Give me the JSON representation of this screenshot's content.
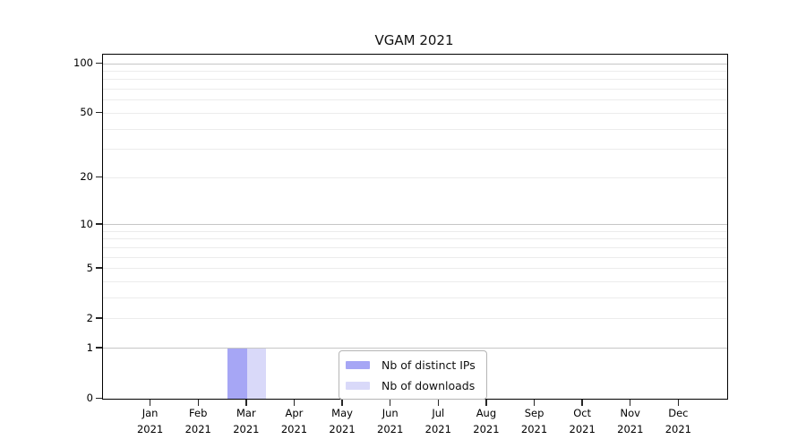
{
  "title": "VGAM 2021",
  "chart_data": {
    "type": "bar",
    "title": "VGAM 2021",
    "xlabel": "",
    "ylabel": "",
    "categories": [
      {
        "label": "Jan",
        "sublabel": "2021"
      },
      {
        "label": "Feb",
        "sublabel": "2021"
      },
      {
        "label": "Mar",
        "sublabel": "2021"
      },
      {
        "label": "Apr",
        "sublabel": "2021"
      },
      {
        "label": "May",
        "sublabel": "2021"
      },
      {
        "label": "Jun",
        "sublabel": "2021"
      },
      {
        "label": "Jul",
        "sublabel": "2021"
      },
      {
        "label": "Aug",
        "sublabel": "2021"
      },
      {
        "label": "Sep",
        "sublabel": "2021"
      },
      {
        "label": "Oct",
        "sublabel": "2021"
      },
      {
        "label": "Nov",
        "sublabel": "2021"
      },
      {
        "label": "Dec",
        "sublabel": "2021"
      }
    ],
    "series": [
      {
        "name": "Nb of distinct IPs",
        "color": "#a6a6f5",
        "values": [
          0,
          0,
          1,
          0,
          0,
          0,
          0,
          0,
          0,
          0,
          0,
          0
        ]
      },
      {
        "name": "Nb of downloads",
        "color": "#d9d9f9",
        "values": [
          0,
          0,
          1,
          0,
          0,
          0,
          0,
          0,
          0,
          0,
          0,
          0
        ]
      }
    ],
    "y_axis": {
      "scale": "log1p",
      "labeled_ticks": [
        0,
        1,
        2,
        5,
        10,
        20,
        50,
        100
      ],
      "major_grid_values": [
        1,
        10,
        100
      ],
      "minor_grid_values": [
        2,
        3,
        4,
        5,
        6,
        7,
        8,
        9,
        20,
        30,
        40,
        50,
        60,
        70,
        80,
        90
      ],
      "ylim": [
        0,
        113.3
      ],
      "grid": true
    },
    "legend": {
      "position": "lower-center",
      "entries": [
        "Nb of distinct IPs",
        "Nb of downloads"
      ]
    },
    "colors": {
      "bar_distinct_ips": "#a6a6f5",
      "bar_downloads": "#d9d9f9",
      "grid_major": "#c6c6c6",
      "grid_minor": "#ececec",
      "spine": "#000000",
      "tick": "#262626",
      "legend_border": "#b5b5b5"
    }
  }
}
